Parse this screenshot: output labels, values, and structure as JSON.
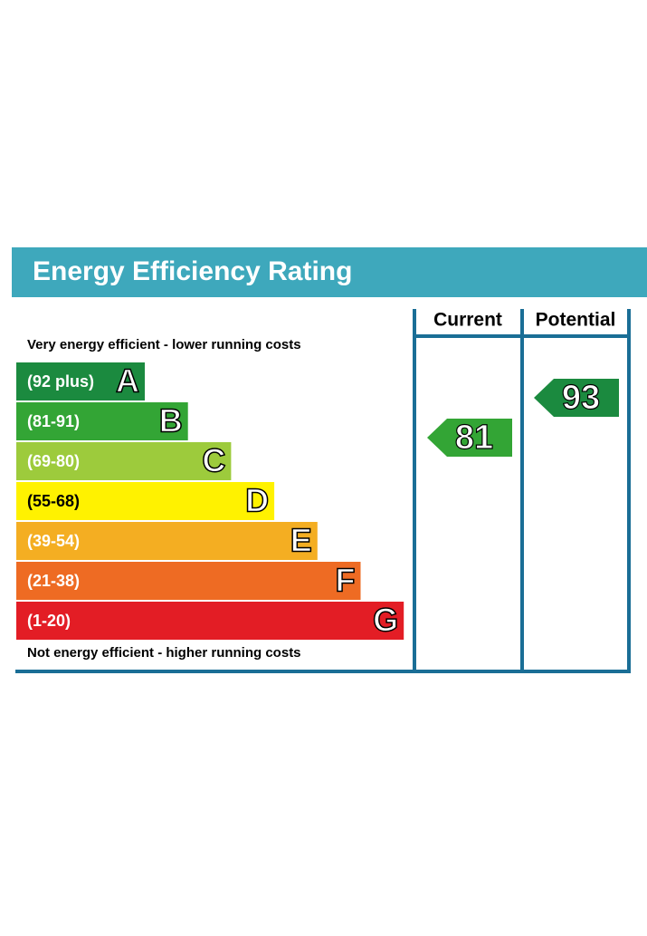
{
  "title": "Energy Efficiency Rating",
  "top_note": "Very energy efficient - lower running costs",
  "bottom_note": "Not energy efficient - higher running costs",
  "columns": [
    "Current",
    "Potential"
  ],
  "bands": [
    {
      "range": "(92 plus)",
      "letter": "A",
      "color": "#1b8a3f",
      "text_color": "#ffffff"
    },
    {
      "range": "(81-91)",
      "letter": "B",
      "color": "#33a535",
      "text_color": "#ffffff"
    },
    {
      "range": "(69-80)",
      "letter": "C",
      "color": "#9dcb3c",
      "text_color": "#ffffff"
    },
    {
      "range": "(55-68)",
      "letter": "D",
      "color": "#fff200",
      "text_color": "#000000"
    },
    {
      "range": "(39-54)",
      "letter": "E",
      "color": "#f4ae22",
      "text_color": "#ffffff"
    },
    {
      "range": "(21-38)",
      "letter": "F",
      "color": "#ee6b23",
      "text_color": "#ffffff"
    },
    {
      "range": "(1-20)",
      "letter": "G",
      "color": "#e31d25",
      "text_color": "#ffffff"
    }
  ],
  "ratings": [
    81,
    93
  ]
}
